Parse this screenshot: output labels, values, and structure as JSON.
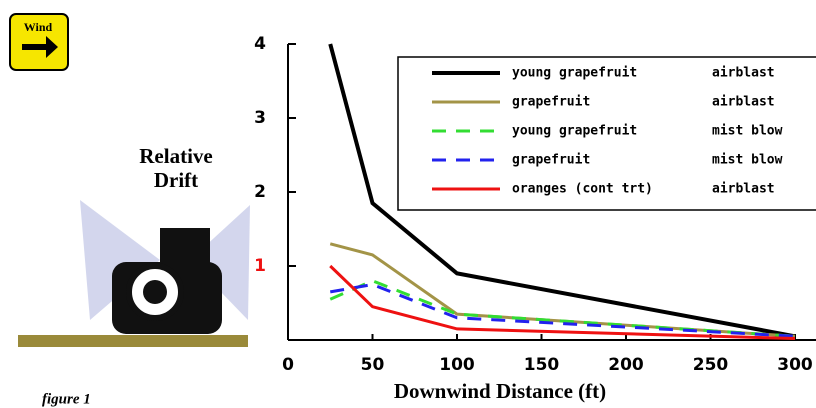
{
  "sign": "Wind",
  "caption": "figure 1",
  "chart_data": {
    "type": "line",
    "ylabel": [
      "Relative",
      "Drift"
    ],
    "xlabel": "Downwind Distance (ft)",
    "x": [
      25,
      50,
      100,
      300
    ],
    "xlim": [
      0,
      300
    ],
    "xticks": [
      0,
      50,
      100,
      150,
      200,
      250,
      300
    ],
    "ylim": [
      0,
      4
    ],
    "yticks": [
      1,
      2,
      3,
      4
    ],
    "series": [
      {
        "name": "young grapefruit",
        "application": "airblast",
        "color": "#000000",
        "dash": false,
        "values": [
          4.0,
          1.85,
          0.9,
          0.05
        ]
      },
      {
        "name": "grapefruit",
        "application": "airblast",
        "color": "#a39447",
        "dash": false,
        "values": [
          1.3,
          1.15,
          0.35,
          0.05
        ]
      },
      {
        "name": "young grapefruit",
        "application": "mist blow",
        "color": "#33dd33",
        "dash": true,
        "values": [
          0.55,
          0.8,
          0.35,
          0.05
        ]
      },
      {
        "name": "grapefruit",
        "application": "mist blow",
        "color": "#2222ee",
        "dash": true,
        "values": [
          0.65,
          0.75,
          0.3,
          0.05
        ]
      },
      {
        "name": "oranges (cont trt)",
        "application": "airblast",
        "color": "#ee1111",
        "dash": false,
        "values": [
          1.0,
          0.45,
          0.15,
          0.02
        ]
      }
    ]
  }
}
